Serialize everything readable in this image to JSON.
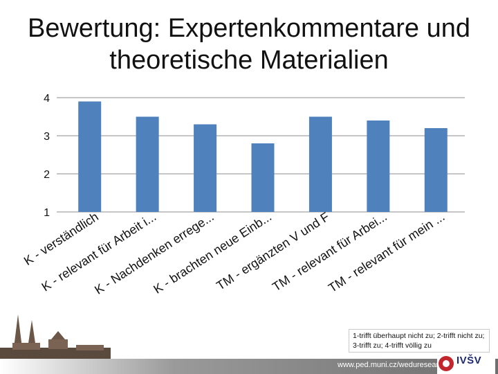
{
  "title_line1": "Bewertung: Expertenkommentare und",
  "title_line2": "theoretische Materialien",
  "note": "1-trifft überhaupt nicht zu; 2-trifft nicht zu; 3-trifft zu; 4-trifft völlig zu",
  "footer": {
    "url": "www.ped.muni.cz/weduresearch",
    "logo_text": "IVŠV"
  },
  "colors": {
    "bar": "#4F81BD",
    "grid": "#8C8C8C"
  },
  "chart_data": {
    "type": "bar",
    "categories": [
      "K - verständlich",
      "K - relevant für Arbeit i...",
      "K - Nachdenken errege...",
      "K - brachten neue Einb...",
      "TM - ergänzten V und F",
      "TM - relevant für Arbei...",
      "TM - relevant für mein ..."
    ],
    "values": [
      3.9,
      3.5,
      3.3,
      2.8,
      3.5,
      3.4,
      3.2
    ],
    "yticks": [
      1,
      2,
      3,
      4
    ],
    "ylim": [
      1,
      4
    ],
    "grid": true
  }
}
